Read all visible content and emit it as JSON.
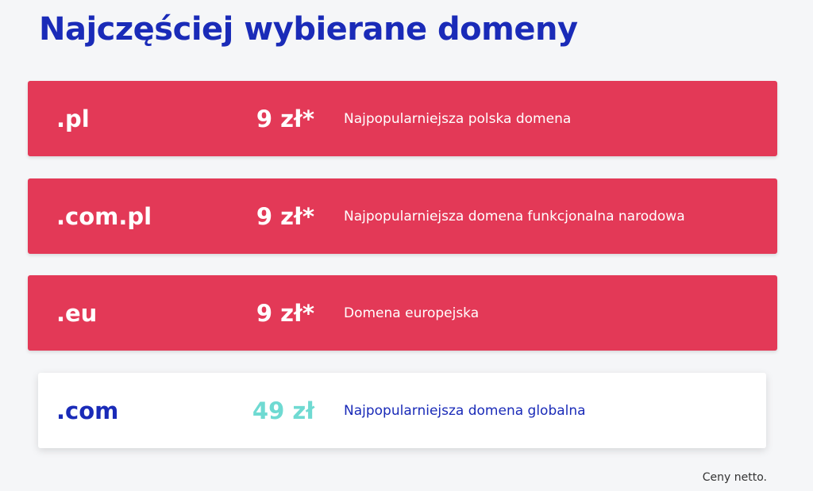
{
  "header": {
    "title": "Najczęściej wybierane domeny"
  },
  "domains": [
    {
      "name": ".pl",
      "price": "9 zł*",
      "description": "Najpopularniejsza polska domena"
    },
    {
      "name": ".com.pl",
      "price": "9 zł*",
      "description": "Najpopularniejsza domena funkcjonalna narodowa"
    },
    {
      "name": ".eu",
      "price": "9 zł*",
      "description": "Domena europejska"
    },
    {
      "name": ".com",
      "price": "49 zł",
      "description": "Najpopularniejsza domena globalna"
    }
  ],
  "footnote": "Ceny netto.",
  "colors": {
    "title": "#1a2bb8",
    "featured_background": "#e33957",
    "plain_background": "#ffffff",
    "plain_price": "#6fdad2",
    "page_background": "#f5f6f8"
  }
}
